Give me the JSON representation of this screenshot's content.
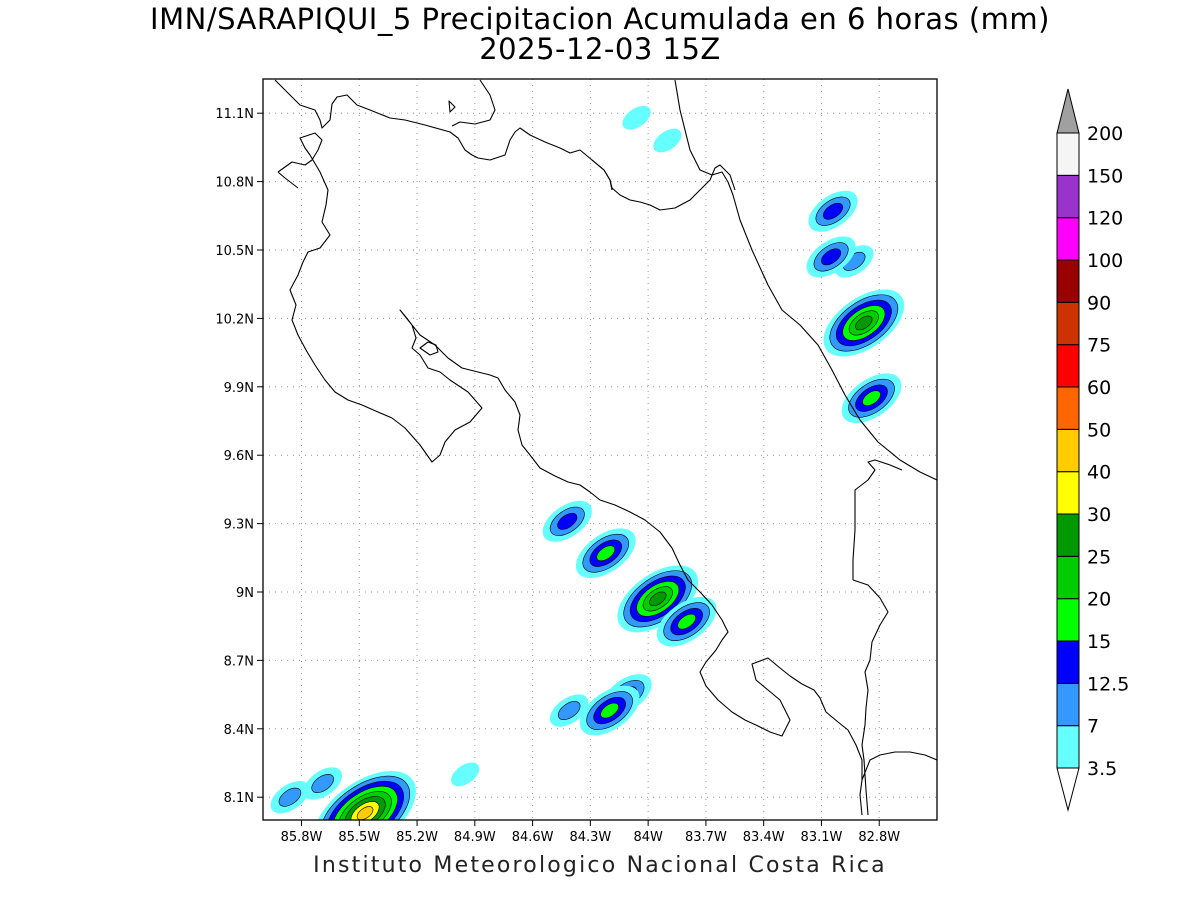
{
  "title": {
    "line1": "IMN/SARAPIQUI_5 Precipitacion Acumulada en 6 horas (mm)",
    "line2": "2025-12-03 15Z"
  },
  "footer": "Instituto Meteorologico Nacional Costa Rica",
  "map": {
    "lon_range": [
      -86.0,
      -82.5
    ],
    "lat_range": [
      8.0,
      11.25
    ],
    "grid": true,
    "lat_ticks": [
      "11.1N",
      "10.8N",
      "10.5N",
      "10.2N",
      "9.9N",
      "9.6N",
      "9.3N",
      "9N",
      "8.7N",
      "8.4N",
      "8.1N"
    ],
    "lat_values": [
      11.1,
      10.8,
      10.5,
      10.2,
      9.9,
      9.6,
      9.3,
      9.0,
      8.7,
      8.4,
      8.1
    ],
    "lon_ticks": [
      "85.8W",
      "85.5W",
      "85.2W",
      "84.9W",
      "84.6W",
      "84.3W",
      "84W",
      "83.7W",
      "83.4W",
      "83.1W",
      "82.8W"
    ],
    "lon_values": [
      -85.8,
      -85.5,
      -85.2,
      -84.9,
      -84.6,
      -84.3,
      -84.0,
      -83.7,
      -83.4,
      -83.1,
      -82.8
    ]
  },
  "colorbar": {
    "levels": [
      "3.5",
      "7",
      "12.5",
      "15",
      "20",
      "25",
      "30",
      "40",
      "50",
      "60",
      "75",
      "90",
      "100",
      "120",
      "150",
      "200"
    ],
    "colors": [
      "#66ffff",
      "#3399ff",
      "#0000ff",
      "#00ff00",
      "#00cc00",
      "#009900",
      "#ffff00",
      "#ffcc00",
      "#ff6600",
      "#ff0000",
      "#cc3300",
      "#990000",
      "#ff00ff",
      "#9933cc",
      "#f5f5f5"
    ],
    "over_color": "#a0a0a0",
    "under_color": "#ffffff"
  },
  "precip_cells": [
    {
      "lon": -82.88,
      "lat": 10.18,
      "max": 25
    },
    {
      "lon": -82.84,
      "lat": 9.85,
      "max": 15
    },
    {
      "lon": -83.04,
      "lat": 10.67,
      "max": 12.5
    },
    {
      "lon": -82.93,
      "lat": 10.45,
      "max": 7
    },
    {
      "lon": -83.05,
      "lat": 10.47,
      "max": 12.5
    },
    {
      "lon": -83.9,
      "lat": 10.98,
      "max": 3.5
    },
    {
      "lon": -84.06,
      "lat": 11.08,
      "max": 3.5
    },
    {
      "lon": -84.22,
      "lat": 9.17,
      "max": 15
    },
    {
      "lon": -83.95,
      "lat": 8.97,
      "max": 25
    },
    {
      "lon": -83.8,
      "lat": 8.87,
      "max": 15
    },
    {
      "lon": -84.42,
      "lat": 9.31,
      "max": 12.5
    },
    {
      "lon": -84.11,
      "lat": 8.55,
      "max": 12.5
    },
    {
      "lon": -84.2,
      "lat": 8.48,
      "max": 15
    },
    {
      "lon": -84.41,
      "lat": 8.48,
      "max": 7
    },
    {
      "lon": -85.47,
      "lat": 8.03,
      "max": 40
    },
    {
      "lon": -85.69,
      "lat": 8.16,
      "max": 7
    },
    {
      "lon": -85.86,
      "lat": 8.1,
      "max": 7
    },
    {
      "lon": -84.95,
      "lat": 8.2,
      "max": 3.5
    }
  ]
}
